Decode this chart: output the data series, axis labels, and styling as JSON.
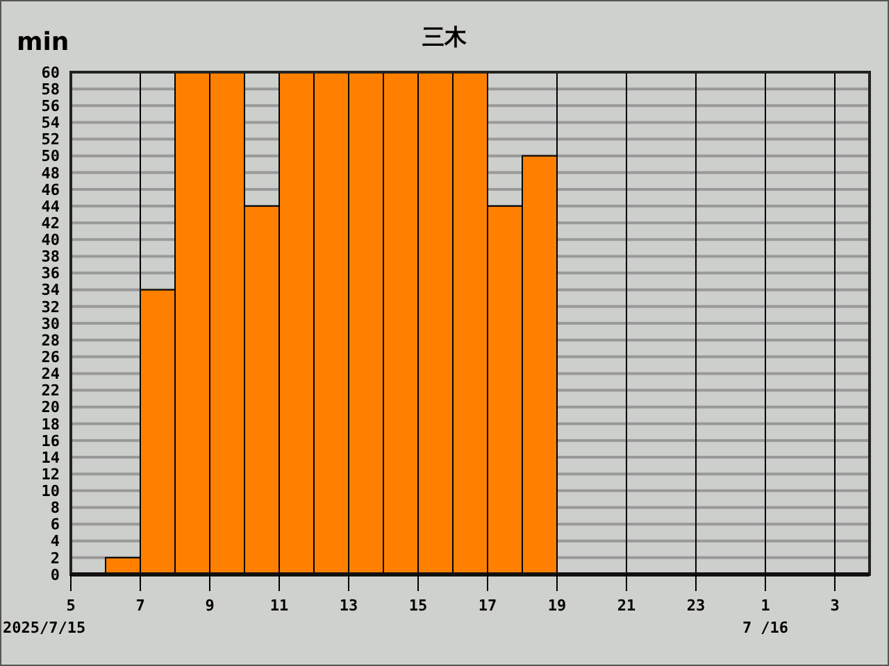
{
  "chart_data": {
    "type": "bar",
    "title": "三木",
    "ylabel": "min",
    "x": [
      "2025-07-15T06:30",
      "2025-07-15T07:30",
      "2025-07-15T08:30",
      "2025-07-15T09:30",
      "2025-07-15T10:30",
      "2025-07-15T11:30",
      "2025-07-15T12:30",
      "2025-07-15T13:30",
      "2025-07-15T14:30",
      "2025-07-15T15:30",
      "2025-07-15T16:30",
      "2025-07-15T17:30",
      "2025-07-15T18:30"
    ],
    "values": [
      2,
      34,
      60,
      60,
      44,
      60,
      60,
      60,
      60,
      60,
      60,
      44,
      50
    ],
    "color": "#ff8000",
    "xlim": [
      "2025-07-15T05:00",
      "2025-07-16T04:00"
    ],
    "xticks": [
      {
        "value": "2025-07-15T05:00",
        "label": "5"
      },
      {
        "value": "2025-07-15T07:00",
        "label": "7"
      },
      {
        "value": "2025-07-15T09:00",
        "label": "9"
      },
      {
        "value": "2025-07-15T11:00",
        "label": "11"
      },
      {
        "value": "2025-07-15T13:00",
        "label": "13"
      },
      {
        "value": "2025-07-15T15:00",
        "label": "15"
      },
      {
        "value": "2025-07-15T17:00",
        "label": "17"
      },
      {
        "value": "2025-07-15T19:00",
        "label": "19"
      },
      {
        "value": "2025-07-15T21:00",
        "label": "21"
      },
      {
        "value": "2025-07-15T23:00",
        "label": "23"
      },
      {
        "value": "2025-07-16T01:00",
        "label": "1"
      },
      {
        "value": "2025-07-16T03:00",
        "label": "3"
      }
    ],
    "ylim": [
      0,
      60
    ],
    "yticks": [
      0,
      2,
      4,
      6,
      8,
      10,
      12,
      14,
      16,
      18,
      20,
      22,
      24,
      26,
      28,
      30,
      32,
      34,
      36,
      38,
      40,
      42,
      44,
      46,
      48,
      50,
      52,
      54,
      56,
      58,
      60
    ],
    "grid": true,
    "annotations": [
      "2025/7/15",
      "7 /16"
    ]
  }
}
